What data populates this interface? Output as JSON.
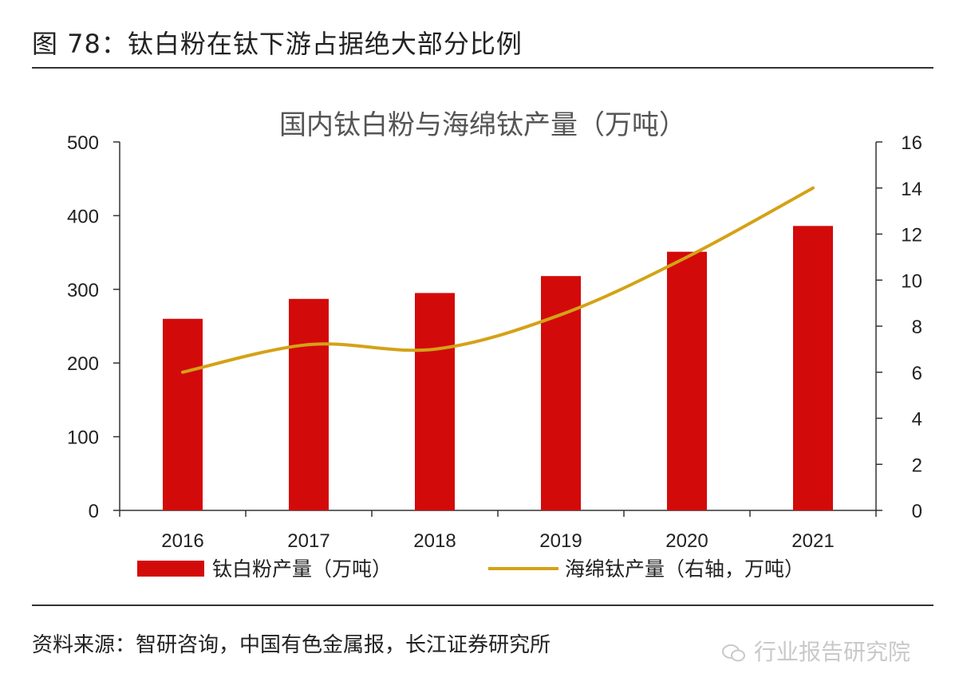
{
  "figure": {
    "title": "图 78：钛白粉在钛下游占据绝大部分比例",
    "source": "资料来源：智研咨询，中国有色金属报，长江证券研究所",
    "watermark": "行业报告研究院"
  },
  "chart_data": {
    "type": "bar",
    "title": "国内钛白粉与海绵钛产量（万吨）",
    "categories": [
      "2016",
      "2017",
      "2018",
      "2019",
      "2020",
      "2021"
    ],
    "series": [
      {
        "name": "钛白粉产量（万吨）",
        "type": "bar",
        "axis": "left",
        "color": "#d30a0a",
        "values": [
          260,
          287,
          295,
          318,
          351,
          386
        ]
      },
      {
        "name": "海绵钛产量（右轴，万吨）",
        "type": "line",
        "axis": "right",
        "color": "#d4a216",
        "values": [
          6.0,
          7.2,
          7.0,
          8.5,
          11.0,
          14.0
        ]
      }
    ],
    "y_left": {
      "min": 0,
      "max": 500,
      "ticks": [
        "0",
        "100",
        "200",
        "300",
        "400",
        "500"
      ]
    },
    "y_right": {
      "min": 0,
      "max": 16,
      "ticks": [
        "0",
        "2",
        "4",
        "6",
        "8",
        "10",
        "12",
        "14",
        "16"
      ]
    },
    "grid": false,
    "legend_position": "bottom"
  }
}
